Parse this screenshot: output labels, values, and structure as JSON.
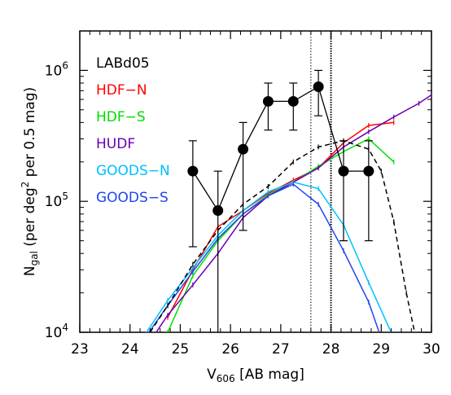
{
  "chart_data": {
    "type": "line",
    "title": "",
    "xlabel": {
      "main": "V",
      "sub": "606",
      "rest": " [AB mag]"
    },
    "ylabel": {
      "pre": "N",
      "sub": "gal",
      "mid": "  (per deg",
      "sup": "2",
      "post": " per 0.5 mag)"
    },
    "xlim": [
      23,
      30
    ],
    "ylim": [
      10000,
      2000000
    ],
    "yscale": "log",
    "xticks": [
      23,
      24,
      25,
      26,
      27,
      28,
      29,
      30
    ],
    "xtick_labels": [
      "23",
      "24",
      "25",
      "26",
      "27",
      "28",
      "29",
      "30"
    ],
    "yticks": [
      10000,
      100000,
      1000000
    ],
    "ytick_labels": [
      {
        "base": "10",
        "exp": "4"
      },
      {
        "base": "10",
        "exp": "5"
      },
      {
        "base": "10",
        "exp": "6"
      }
    ],
    "legend_placement": "top-left",
    "vlines": [
      27.6,
      28.0
    ],
    "series": [
      {
        "name": "HDF−N",
        "color": "#ff0000",
        "x": [
          24.75,
          25.25,
          25.75,
          26.25,
          26.75,
          27.25,
          27.75,
          28.25,
          28.75,
          29.25
        ],
        "y": [
          13000,
          30000,
          64000,
          85000,
          115000,
          145000,
          180000,
          280000,
          380000,
          400000
        ]
      },
      {
        "name": "HDF−S",
        "color": "#00dd00",
        "x": [
          24.75,
          25.25,
          25.75,
          26.25,
          26.75,
          27.25,
          27.75,
          28.25,
          28.75,
          29.25
        ],
        "y": [
          10000,
          27000,
          50000,
          80000,
          112000,
          140000,
          185000,
          240000,
          300000,
          200000
        ]
      },
      {
        "name": "HUDF",
        "color": "#6a00b0",
        "x": [
          24.25,
          24.75,
          25.25,
          25.75,
          26.25,
          26.75,
          27.25,
          27.75,
          28.25,
          28.75,
          29.25,
          29.75,
          30.0
        ],
        "y": [
          7000,
          13500,
          23000,
          40000,
          75000,
          110000,
          140000,
          180000,
          260000,
          340000,
          440000,
          560000,
          650000
        ]
      },
      {
        "name": "GOODS−N",
        "color": "#00bfff",
        "x": [
          24.25,
          24.75,
          25.25,
          25.75,
          26.25,
          26.75,
          27.25,
          27.75,
          28.25,
          28.75,
          29.25
        ],
        "y": [
          9000,
          17500,
          31000,
          55000,
          85000,
          118000,
          140000,
          125000,
          66000,
          24000,
          9000
        ]
      },
      {
        "name": "GOODS−S",
        "color": "#2244ee",
        "x": [
          24.25,
          24.75,
          25.25,
          25.75,
          26.25,
          26.75,
          27.25,
          27.75,
          28.25,
          28.75,
          29.0
        ],
        "y": [
          8500,
          16000,
          29000,
          52000,
          80000,
          110000,
          135000,
          95000,
          42000,
          17000,
          9000
        ]
      },
      {
        "name": "LABd05",
        "color": "#000000",
        "x": [
          25.25,
          25.75,
          26.25,
          26.75,
          27.25,
          27.75,
          28.25,
          28.75
        ],
        "y": [
          170000,
          85000,
          250000,
          580000,
          580000,
          750000,
          170000,
          170000
        ],
        "err_low": [
          45000,
          8000,
          60000,
          350000,
          350000,
          450000,
          50000,
          50000
        ],
        "err_high": [
          290000,
          170000,
          400000,
          800000,
          800000,
          1000000,
          290000,
          290000
        ]
      },
      {
        "name": "",
        "color": "#000000",
        "dashed": true,
        "x": [
          24.4,
          24.75,
          25.25,
          25.75,
          26.25,
          26.75,
          27.25,
          27.75,
          28.25,
          28.75,
          29.0,
          29.25,
          29.5,
          29.75
        ],
        "y": [
          10000,
          16000,
          33000,
          60000,
          95000,
          130000,
          200000,
          260000,
          290000,
          250000,
          170000,
          70000,
          20000,
          7000
        ]
      }
    ]
  }
}
